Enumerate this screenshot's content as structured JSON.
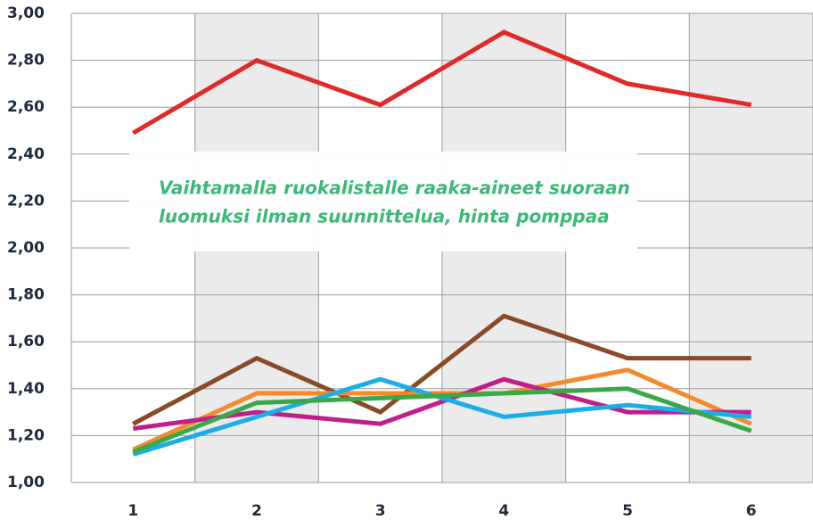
{
  "chart_data": {
    "type": "line",
    "annotation": [
      "Vaihtamalla ruokalistalle raaka-aineet suoraan",
      "luomuksi ilman suunnittelua, hinta pomppaa"
    ],
    "categories": [
      "1",
      "2",
      "3",
      "4",
      "5",
      "6"
    ],
    "series": [
      {
        "color": "#e02a2a",
        "values": [
          2.49,
          2.8,
          2.61,
          2.92,
          2.7,
          2.61
        ]
      },
      {
        "color": "#8b4a26",
        "values": [
          1.25,
          1.53,
          1.3,
          1.71,
          1.53,
          1.53
        ]
      },
      {
        "color": "#f48a2c",
        "values": [
          1.14,
          1.38,
          1.38,
          1.38,
          1.48,
          1.25
        ]
      },
      {
        "color": "#c01e8a",
        "values": [
          1.23,
          1.3,
          1.25,
          1.44,
          1.3,
          1.3
        ]
      },
      {
        "color": "#1aaee8",
        "values": [
          1.12,
          1.28,
          1.44,
          1.28,
          1.33,
          1.28
        ]
      },
      {
        "color": "#3aa84a",
        "values": [
          1.13,
          1.34,
          1.36,
          1.38,
          1.4,
          1.22
        ]
      }
    ],
    "ylim": [
      1.0,
      3.0
    ],
    "yticks": [
      {
        "value": 1.0,
        "label": "1,00"
      },
      {
        "value": 1.2,
        "label": "1,20"
      },
      {
        "value": 1.4,
        "label": "1,40"
      },
      {
        "value": 1.6,
        "label": "1,60"
      },
      {
        "value": 1.8,
        "label": "1,80"
      },
      {
        "value": 2.0,
        "label": "2,00"
      },
      {
        "value": 2.2,
        "label": "2,20"
      },
      {
        "value": 2.4,
        "label": "2,40"
      },
      {
        "value": 2.6,
        "label": "2,60"
      },
      {
        "value": 2.8,
        "label": "2,80"
      },
      {
        "value": 3.0,
        "label": "3,00"
      }
    ],
    "grid": true
  }
}
